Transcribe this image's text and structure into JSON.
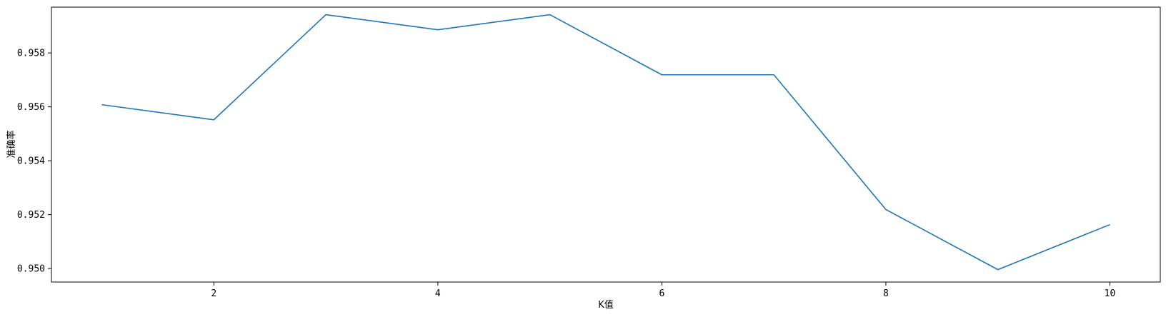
{
  "chart_data": {
    "type": "line",
    "xlabel": "K值",
    "ylabel": "准确率",
    "xlim": [
      0.55,
      10.45
    ],
    "ylim": [
      0.9495,
      0.9597
    ],
    "x_ticks": [
      2,
      4,
      6,
      8,
      10
    ],
    "x_tick_labels": [
      "2",
      "4",
      "6",
      "8",
      "10"
    ],
    "y_ticks": [
      0.95,
      0.952,
      0.954,
      0.956,
      0.958
    ],
    "y_tick_labels": [
      "0.950",
      "0.952",
      "0.954",
      "0.956",
      "0.958"
    ],
    "grid": false,
    "series": [
      {
        "color": "#1f77b4",
        "x": [
          1,
          2,
          3,
          4,
          5,
          6,
          7,
          8,
          9,
          10
        ],
        "y": [
          0.95608,
          0.95552,
          0.95942,
          0.95886,
          0.95942,
          0.95719,
          0.95719,
          0.95219,
          0.94996,
          0.95163
        ]
      }
    ]
  }
}
